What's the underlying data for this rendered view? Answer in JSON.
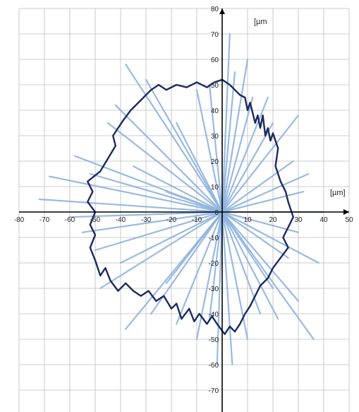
{
  "chart_data": {
    "type": "scatter",
    "subtype": "polar-profile",
    "title": "",
    "x_unit_label": "[µm]",
    "y_unit_label": "[µm",
    "xlim": [
      -80,
      50
    ],
    "ylim": [
      -80,
      80
    ],
    "grid": true,
    "x_ticks": [
      -80,
      -70,
      -60,
      -50,
      -40,
      -30,
      -20,
      -10,
      0,
      10,
      20,
      30,
      40,
      50
    ],
    "y_ticks": [
      -80,
      -70,
      -60,
      -50,
      -40,
      -30,
      -20,
      -10,
      0,
      10,
      20,
      30,
      40,
      50,
      60,
      70,
      80
    ],
    "colors": {
      "profile": "#1c2a5e",
      "spikes": "#8fb3de",
      "grid": "#bdbdbd",
      "axis": "#000000"
    },
    "series": [
      {
        "style": "dark-line",
        "points": [
          [
            0,
            52
          ],
          [
            3,
            50
          ],
          [
            5,
            48
          ],
          [
            7,
            46
          ],
          [
            9,
            45
          ],
          [
            10,
            40
          ],
          [
            11,
            43
          ],
          [
            13,
            35
          ],
          [
            14,
            38
          ],
          [
            15,
            33
          ],
          [
            16,
            38
          ],
          [
            17,
            30
          ],
          [
            18,
            33
          ],
          [
            19,
            28
          ],
          [
            20,
            31
          ],
          [
            22,
            25
          ],
          [
            21,
            18
          ],
          [
            23,
            12
          ],
          [
            25,
            8
          ],
          [
            26,
            4
          ],
          [
            27,
            1
          ],
          [
            28,
            -2
          ],
          [
            26,
            -6
          ],
          [
            24,
            -10
          ],
          [
            26,
            -14
          ],
          [
            23,
            -18
          ],
          [
            20,
            -22
          ],
          [
            18,
            -26
          ],
          [
            15,
            -29
          ],
          [
            13,
            -33
          ],
          [
            11,
            -37
          ],
          [
            9,
            -40
          ],
          [
            7,
            -44
          ],
          [
            5,
            -47
          ],
          [
            3,
            -45
          ],
          [
            1,
            -48
          ],
          [
            -2,
            -44
          ],
          [
            -4,
            -41
          ],
          [
            -6,
            -44
          ],
          [
            -9,
            -40
          ],
          [
            -11,
            -43
          ],
          [
            -13,
            -38
          ],
          [
            -16,
            -42
          ],
          [
            -18,
            -36
          ],
          [
            -20,
            -38
          ],
          [
            -23,
            -33
          ],
          [
            -26,
            -35
          ],
          [
            -29,
            -31
          ],
          [
            -32,
            -33
          ],
          [
            -35,
            -31
          ],
          [
            -38,
            -28
          ],
          [
            -41,
            -31
          ],
          [
            -44,
            -27
          ],
          [
            -46,
            -22
          ],
          [
            -48,
            -25
          ],
          [
            -50,
            -19
          ],
          [
            -52,
            -14
          ],
          [
            -50,
            -9
          ],
          [
            -52,
            -5
          ],
          [
            -50,
            0
          ],
          [
            -53,
            4
          ],
          [
            -51,
            8
          ],
          [
            -53,
            12
          ],
          [
            -48,
            16
          ],
          [
            -45,
            21
          ],
          [
            -42,
            26
          ],
          [
            -43,
            30
          ],
          [
            -39,
            36
          ],
          [
            -36,
            40
          ],
          [
            -32,
            44
          ],
          [
            -28,
            48
          ],
          [
            -25,
            50
          ],
          [
            -22,
            48
          ],
          [
            -18,
            50
          ],
          [
            -14,
            49
          ],
          [
            -10,
            51
          ],
          [
            -6,
            49
          ],
          [
            -3,
            51
          ],
          [
            0,
            52
          ]
        ]
      },
      {
        "style": "light-spikes",
        "points": [
          [
            0,
            0
          ],
          [
            3,
            70
          ],
          [
            0,
            0
          ],
          [
            10,
            60
          ],
          [
            0,
            0
          ],
          [
            18,
            45
          ],
          [
            0,
            0
          ],
          [
            30,
            38
          ],
          [
            0,
            0
          ],
          [
            34,
            15
          ],
          [
            0,
            0
          ],
          [
            40,
            0
          ],
          [
            0,
            0
          ],
          [
            38,
            -20
          ],
          [
            0,
            0
          ],
          [
            36,
            -50
          ],
          [
            0,
            0
          ],
          [
            30,
            -35
          ],
          [
            0,
            0
          ],
          [
            22,
            -42
          ],
          [
            0,
            0
          ],
          [
            10,
            -50
          ],
          [
            0,
            0
          ],
          [
            4,
            -60
          ],
          [
            0,
            0
          ],
          [
            -2,
            -60
          ],
          [
            0,
            0
          ],
          [
            -10,
            -50
          ],
          [
            0,
            0
          ],
          [
            -18,
            -44
          ],
          [
            0,
            0
          ],
          [
            -28,
            -40
          ],
          [
            0,
            0
          ],
          [
            -38,
            -46
          ],
          [
            0,
            0
          ],
          [
            -48,
            -30
          ],
          [
            0,
            0
          ],
          [
            -55,
            -8
          ],
          [
            0,
            0
          ],
          [
            -72,
            5
          ],
          [
            0,
            0
          ],
          [
            -68,
            14
          ],
          [
            0,
            0
          ],
          [
            -58,
            22
          ],
          [
            0,
            0
          ],
          [
            -45,
            35
          ],
          [
            0,
            0
          ],
          [
            -38,
            58
          ],
          [
            0,
            0
          ],
          [
            -18,
            35
          ],
          [
            0,
            0
          ],
          [
            -10,
            48
          ],
          [
            0,
            0
          ],
          [
            -30,
            52
          ],
          [
            0,
            0
          ],
          [
            -35,
            18
          ],
          [
            0,
            0
          ],
          [
            -22,
            8
          ],
          [
            0,
            0
          ],
          [
            -5,
            50
          ],
          [
            0,
            0
          ],
          [
            5,
            55
          ],
          [
            0,
            0
          ],
          [
            12,
            45
          ],
          [
            0,
            0
          ],
          [
            20,
            35
          ],
          [
            0,
            0
          ],
          [
            28,
            20
          ],
          [
            0,
            0
          ],
          [
            32,
            8
          ],
          [
            0,
            0
          ],
          [
            30,
            -8
          ],
          [
            0,
            0
          ],
          [
            26,
            -18
          ],
          [
            0,
            0
          ],
          [
            20,
            -30
          ],
          [
            0,
            0
          ],
          [
            15,
            -40
          ],
          [
            0,
            0
          ],
          [
            -5,
            -42
          ],
          [
            0,
            0
          ],
          [
            -22,
            -28
          ],
          [
            0,
            0
          ],
          [
            -40,
            -20
          ],
          [
            0,
            0
          ],
          [
            -50,
            -15
          ],
          [
            0,
            0
          ],
          [
            -60,
            -2
          ],
          [
            0,
            0
          ],
          [
            -52,
            15
          ],
          [
            0,
            0
          ],
          [
            -42,
            42
          ]
        ]
      }
    ]
  }
}
